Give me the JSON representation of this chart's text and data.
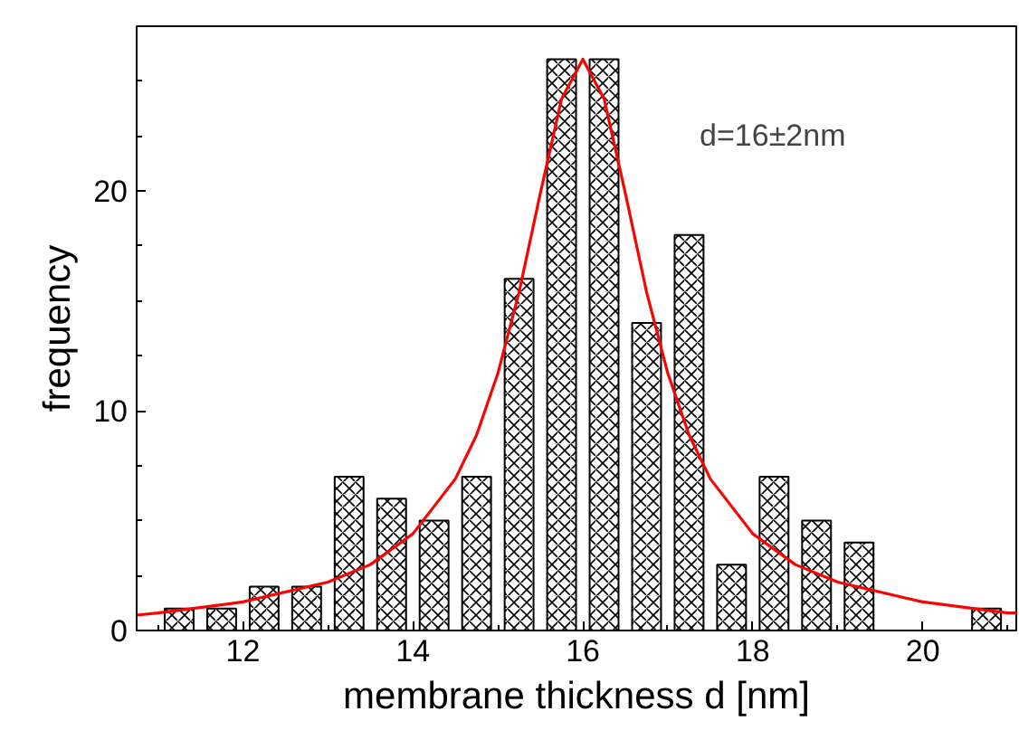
{
  "chart_data": {
    "type": "histogram",
    "xlabel": "membrane thickness d [nm]",
    "ylabel": "frequency",
    "bins": [
      11,
      11.5,
      12,
      12.5,
      13,
      13.5,
      14,
      14.5,
      15,
      15.5,
      16,
      16.5,
      17,
      17.5,
      18,
      18.5,
      19,
      19.5,
      20,
      20.5,
      21
    ],
    "values": [
      1,
      1,
      2,
      2,
      7,
      6,
      5,
      7,
      16,
      26,
      26,
      14,
      18,
      3,
      7,
      5,
      4,
      0,
      0,
      1
    ],
    "color": "#000000",
    "series": [
      {
        "type": "line",
        "color": "#ff0000",
        "x": [
          10.75,
          11,
          12,
          13,
          13.5,
          14,
          14.5,
          14.75,
          15,
          15.25,
          15.5,
          15.75,
          16,
          16.25,
          16.5,
          16.75,
          17,
          17.25,
          17.5,
          18,
          18.5,
          19,
          20,
          21,
          21.1
        ],
        "values": [
          0.7,
          0.8,
          1.3,
          2.2,
          3.0,
          4.4,
          6.9,
          8.9,
          11.7,
          15.4,
          19.9,
          24.2,
          26,
          24.2,
          19.9,
          15.4,
          11.7,
          8.9,
          6.9,
          4.4,
          3.0,
          2.2,
          1.3,
          0.8,
          0.8
        ]
      }
    ],
    "annotations": [
      "d=16±2nm"
    ],
    "xlim": [
      10.75,
      21.1
    ],
    "xticks": [
      12,
      14,
      16,
      18,
      20
    ],
    "ylim": [
      0,
      27.5
    ],
    "yticks": [
      0,
      10,
      20
    ],
    "grid": false
  }
}
